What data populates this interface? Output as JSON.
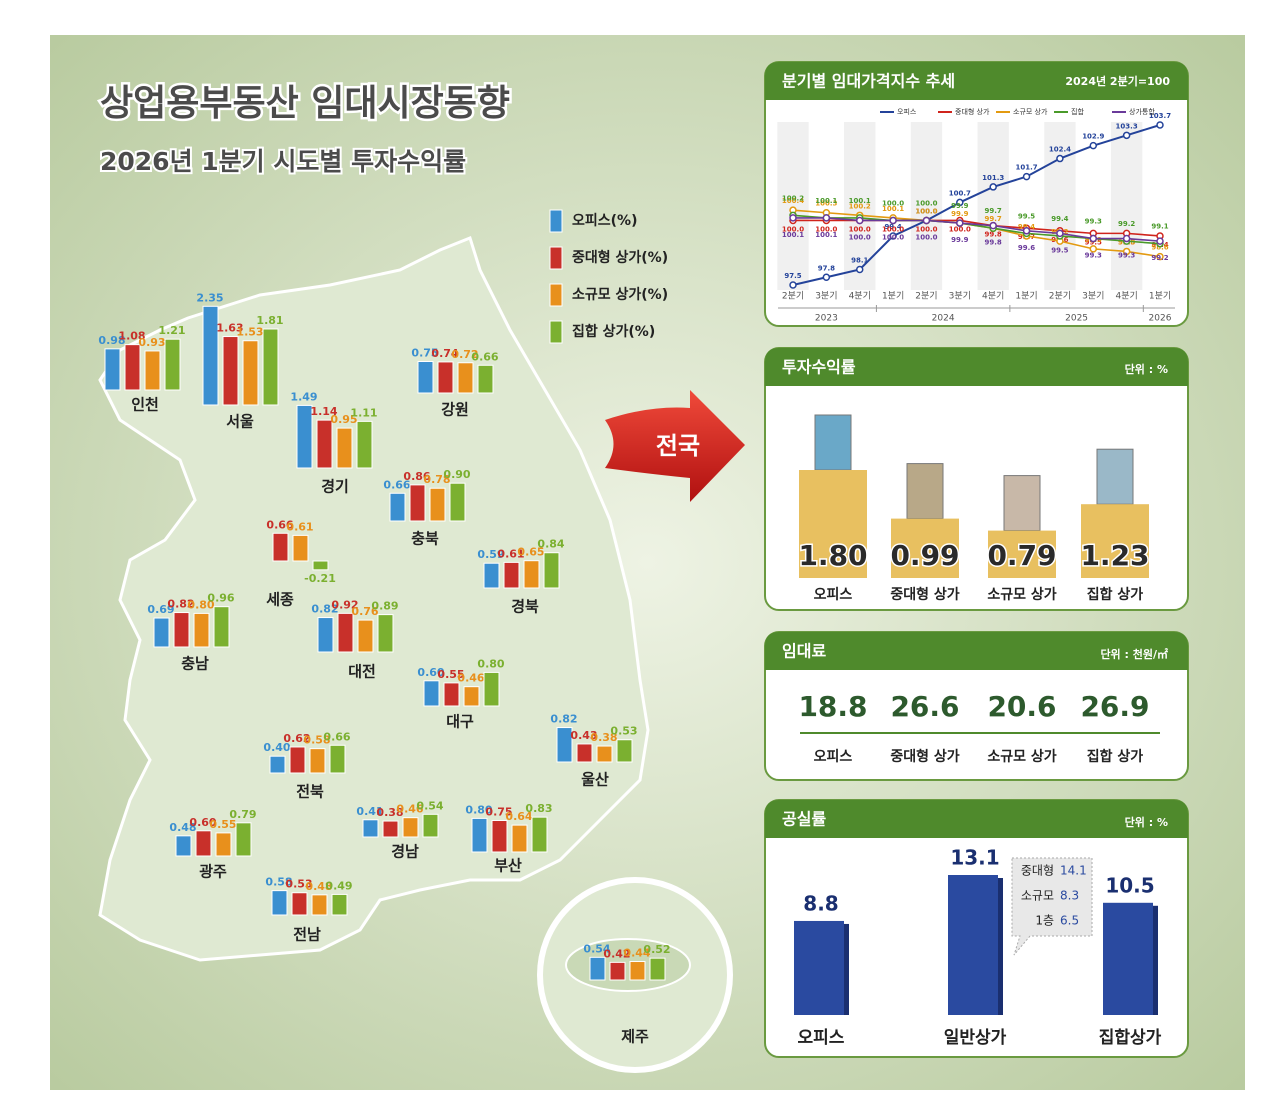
{
  "header": {
    "title": "상업용부동산 임대시장동향",
    "subtitle": "2026년 1분기 시도별 투자수익률"
  },
  "legend": [
    {
      "name": "오피스(%)",
      "color": "#3a8fd0"
    },
    {
      "name": "중대형 상가(%)",
      "color": "#c8302a"
    },
    {
      "name": "소규모 상가(%)",
      "color": "#e8901c"
    },
    {
      "name": "집합 상가(%)",
      "color": "#7bb030"
    }
  ],
  "map": {
    "regions": [
      {
        "name": "인천",
        "values": [
          0.98,
          1.08,
          0.93,
          1.21
        ],
        "value_labels": [
          "0.98",
          "1.08",
          "0.93",
          "1.21"
        ]
      },
      {
        "name": "서울",
        "values": [
          2.35,
          1.63,
          1.53,
          1.81
        ],
        "value_labels": [
          "2.35",
          "1.63",
          "1.53",
          "1.81"
        ]
      },
      {
        "name": "경기",
        "values": [
          1.49,
          1.14,
          0.95,
          1.11
        ],
        "value_labels": [
          "1.49",
          "1.14",
          "0.95",
          "1.11"
        ]
      },
      {
        "name": "강원",
        "values": [
          0.75,
          0.74,
          0.72,
          0.66
        ],
        "value_labels": [
          "0.75",
          "0.74",
          "0.72",
          "0.66"
        ]
      },
      {
        "name": "충북",
        "values": [
          0.66,
          0.86,
          0.78,
          0.9
        ],
        "value_labels": [
          "0.66",
          "0.86",
          "0.78",
          "0.90"
        ]
      },
      {
        "name": "세종",
        "values": [
          null,
          0.66,
          0.61,
          -0.21
        ],
        "value_labels": [
          null,
          "0.66",
          "0.61",
          "-0.21"
        ]
      },
      {
        "name": "경북",
        "values": [
          0.59,
          0.61,
          0.65,
          0.84
        ],
        "value_labels": [
          "0.59",
          "0.61",
          "0.65",
          "0.84"
        ]
      },
      {
        "name": "충남",
        "values": [
          0.69,
          0.82,
          0.8,
          0.96
        ],
        "value_labels": [
          "0.69",
          "0.82",
          "0.80",
          "0.96"
        ]
      },
      {
        "name": "대전",
        "values": [
          0.82,
          0.92,
          0.76,
          0.89
        ],
        "value_labels": [
          "0.82",
          "0.92",
          "0.76",
          "0.89"
        ]
      },
      {
        "name": "대구",
        "values": [
          0.6,
          0.55,
          0.46,
          0.8
        ],
        "value_labels": [
          "0.60",
          "0.55",
          "0.46",
          "0.80"
        ]
      },
      {
        "name": "울산",
        "values": [
          0.82,
          0.43,
          0.38,
          0.53
        ],
        "value_labels": [
          "0.82",
          "0.43",
          "0.38",
          "0.53"
        ]
      },
      {
        "name": "전북",
        "values": [
          0.4,
          0.62,
          0.58,
          0.66
        ],
        "value_labels": [
          "0.40",
          "0.62",
          "0.58",
          "0.66"
        ]
      },
      {
        "name": "광주",
        "values": [
          0.48,
          0.6,
          0.55,
          0.79
        ],
        "value_labels": [
          "0.48",
          "0.60",
          "0.55",
          "0.79"
        ]
      },
      {
        "name": "경남",
        "values": [
          0.41,
          0.38,
          0.46,
          0.54
        ],
        "value_labels": [
          "0.41",
          "0.38",
          "0.46",
          "0.54"
        ]
      },
      {
        "name": "부산",
        "values": [
          0.8,
          0.75,
          0.64,
          0.83
        ],
        "value_labels": [
          "0.80",
          "0.75",
          "0.64",
          "0.83"
        ]
      },
      {
        "name": "전남",
        "values": [
          0.58,
          0.53,
          0.48,
          0.49
        ],
        "value_labels": [
          "0.58",
          "0.53",
          "0.48",
          "0.49"
        ]
      },
      {
        "name": "제주",
        "values": [
          0.54,
          0.42,
          0.44,
          0.52
        ],
        "value_labels": [
          "0.54",
          "0.42",
          "0.44",
          "0.52"
        ]
      }
    ]
  },
  "center_label": "전국",
  "trend": {
    "type": "line",
    "title": "분기별 임대가격지수 추세",
    "note": "2024년 2분기=100",
    "year_groups": [
      {
        "year": "2023",
        "quarters": [
          "2분기",
          "3분기",
          "4분기"
        ]
      },
      {
        "year": "2024",
        "quarters": [
          "1분기",
          "2분기",
          "3분기",
          "4분기"
        ]
      },
      {
        "year": "2025",
        "quarters": [
          "1분기",
          "2분기",
          "3분기",
          "4분기"
        ]
      },
      {
        "year": "2026",
        "quarters": [
          "1분기"
        ]
      }
    ],
    "series": [
      {
        "name": "오피스",
        "color": "#24439a",
        "values": [
          97.5,
          97.8,
          98.1,
          99.4,
          100.0,
          100.7,
          101.3,
          101.7,
          102.4,
          102.9,
          103.3,
          103.7
        ],
        "value_labels": [
          "97.5",
          "97.8",
          "98.1",
          "99.4",
          "100.0",
          "100.7",
          "101.3",
          "101.7",
          "102.4",
          "102.9",
          "103.3",
          "103.7"
        ]
      },
      {
        "name": "중대형 상가",
        "color": "#d0241c",
        "values": [
          100.0,
          100.0,
          100.0,
          100.0,
          100.0,
          100.0,
          99.8,
          99.7,
          99.6,
          99.5,
          99.5,
          99.4
        ],
        "value_labels": [
          "100.0",
          "100.0",
          "100.0",
          "100.0",
          "100.0",
          "100.0",
          "99.8",
          "99.7",
          "99.6",
          "99.5",
          "99.5",
          "99.4"
        ]
      },
      {
        "name": "소규모 상가",
        "color": "#e39a10",
        "values": [
          100.4,
          100.3,
          100.2,
          100.1,
          100.0,
          99.9,
          99.7,
          99.4,
          99.2,
          98.9,
          98.8,
          98.6
        ],
        "value_labels": [
          "100.4",
          "100.3",
          "100.2",
          "100.1",
          "100.0",
          "99.9",
          "99.7",
          "99.4",
          "99.2",
          "98.9",
          "98.8",
          "98.6"
        ]
      },
      {
        "name": "집합",
        "color": "#4a9a2a",
        "values": [
          100.2,
          100.1,
          100.1,
          100.0,
          100.0,
          99.9,
          99.7,
          99.5,
          99.4,
          99.3,
          99.2,
          99.1
        ],
        "value_labels": [
          "100.2",
          "100.1",
          "100.1",
          "100.0",
          "100.0",
          "99.9",
          "99.7",
          "99.5",
          "99.4",
          "99.3",
          "99.2",
          "99.1"
        ]
      },
      {
        "name": "상가통합",
        "color": "#6a3a9a",
        "values": [
          100.1,
          100.1,
          100.0,
          100.0,
          100.0,
          99.9,
          99.8,
          99.6,
          99.5,
          99.3,
          99.3,
          99.2
        ],
        "value_labels": [
          "100.1",
          "100.1",
          "100.0",
          "100.0",
          "100.0",
          "99.9",
          "99.8",
          "99.6",
          "99.5",
          "99.3",
          "99.3",
          "99.2"
        ]
      }
    ]
  },
  "returns": {
    "title": "투자수익률",
    "unit": "단위 : %",
    "categories": [
      "오피스",
      "중대형 상가",
      "소규모 상가",
      "집합 상가"
    ],
    "values": [
      1.8,
      0.99,
      0.79,
      1.23
    ],
    "value_labels": [
      "1.80",
      "0.99",
      "0.79",
      "1.23"
    ],
    "color": "#e8c060"
  },
  "rent": {
    "title": "임대료",
    "unit": "단위 : 천원/㎡",
    "categories": [
      "오피스",
      "중대형 상가",
      "소규모 상가",
      "집합 상가"
    ],
    "values": [
      18.8,
      26.6,
      20.6,
      26.9
    ]
  },
  "vacancy": {
    "title": "공실률",
    "unit": "단위 : %",
    "categories": [
      "오피스",
      "일반상가",
      "집합상가"
    ],
    "values": [
      8.8,
      13.1,
      10.5
    ],
    "color": "#2a4aa0",
    "breakdown": [
      {
        "label": "중대형",
        "value": 14.1
      },
      {
        "label": "소규모",
        "value": 8.3
      },
      {
        "label": "1층",
        "value": 6.5
      }
    ]
  }
}
